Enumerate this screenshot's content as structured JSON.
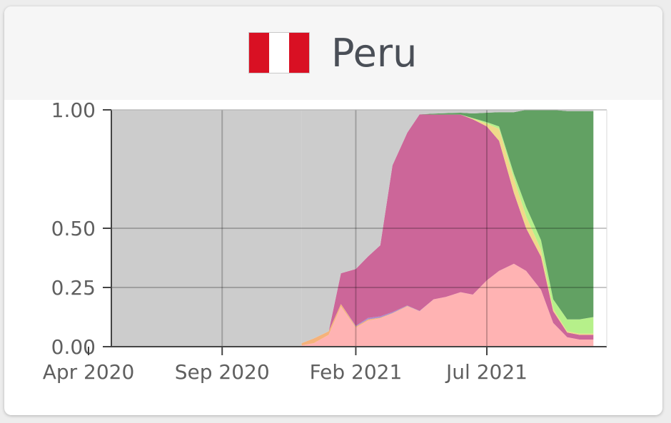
{
  "header": {
    "country": "Peru",
    "flag_icon": "peru-flag-icon",
    "flag_colors": [
      "#d91023",
      "#ffffff",
      "#d91023"
    ]
  },
  "chart_data": {
    "type": "area",
    "stacked": true,
    "normalized": true,
    "title": "",
    "xlabel": "",
    "ylabel": "",
    "x_ticks": [
      "Apr 2020",
      "Sep 2020",
      "Feb 2021",
      "Jul 2021"
    ],
    "y_ticks": [
      "0.00",
      "0.25",
      "0.50",
      "1.00"
    ],
    "y_tick_values": [
      0,
      0.25,
      0.5,
      1.0
    ],
    "ylim": [
      0,
      1
    ],
    "grid": true,
    "legend": "none",
    "x": [
      "2020-12-01",
      "2020-12-15",
      "2021-01-01",
      "2021-01-15",
      "2021-02-01",
      "2021-02-15",
      "2021-03-01",
      "2021-03-15",
      "2021-04-01",
      "2021-04-15",
      "2021-05-01",
      "2021-05-15",
      "2021-06-01",
      "2021-06-15",
      "2021-07-01",
      "2021-07-15",
      "2021-08-01",
      "2021-08-15",
      "2021-09-01",
      "2021-09-15",
      "2021-10-01",
      "2021-10-15",
      "2021-10-31"
    ],
    "series": [
      {
        "color": "#ffb3b3",
        "values": [
          0.005,
          0.015,
          0.05,
          0.17,
          0.08,
          0.11,
          0.12,
          0.14,
          0.17,
          0.15,
          0.2,
          0.21,
          0.23,
          0.22,
          0.28,
          0.32,
          0.35,
          0.32,
          0.24,
          0.1,
          0.04,
          0.03,
          0.03
        ]
      },
      {
        "color": "#f5b27a",
        "values": [
          0.01,
          0.02,
          0.015,
          0.01,
          0.005,
          0.005,
          0.003,
          0.002,
          0.002,
          0.0,
          0.0,
          0.0,
          0.0,
          0.0,
          0.0,
          0.0,
          0.0,
          0.0,
          0.0,
          0.0,
          0.0,
          0.0,
          0.0
        ]
      },
      {
        "color": "#a78bd0",
        "values": [
          0.0,
          0.0,
          0.0,
          0.0,
          0.003,
          0.006,
          0.005,
          0.004,
          0.002,
          0.001,
          0.0,
          0.0,
          0.0,
          0.0,
          0.0,
          0.0,
          0.0,
          0.0,
          0.0,
          0.0,
          0.0,
          0.0,
          0.0
        ]
      },
      {
        "color": "#cc6699",
        "values": [
          0.0,
          0.0,
          0.0,
          0.13,
          0.24,
          0.26,
          0.3,
          0.62,
          0.73,
          0.83,
          0.78,
          0.77,
          0.75,
          0.74,
          0.65,
          0.55,
          0.3,
          0.18,
          0.14,
          0.05,
          0.02,
          0.02,
          0.02
        ]
      },
      {
        "color": "#f0d98a",
        "values": [
          0.0,
          0.0,
          0.0,
          0.0,
          0.0,
          0.0,
          0.0,
          0.0,
          0.0,
          0.0,
          0.0,
          0.0,
          0.0,
          0.003,
          0.012,
          0.05,
          0.06,
          0.05,
          0.03,
          0.01,
          0.005,
          0.005,
          0.005
        ]
      },
      {
        "color": "#b6f08a",
        "values": [
          0.0,
          0.0,
          0.0,
          0.0,
          0.0,
          0.0,
          0.0,
          0.0,
          0.0,
          0.0,
          0.0,
          0.0,
          0.0,
          0.002,
          0.006,
          0.01,
          0.02,
          0.04,
          0.04,
          0.04,
          0.05,
          0.06,
          0.07
        ]
      },
      {
        "color": "#62a163",
        "values": [
          0.0,
          0.0,
          0.0,
          0.0,
          0.0,
          0.0,
          0.0,
          0.0,
          0.0,
          0.0,
          0.004,
          0.006,
          0.008,
          0.02,
          0.04,
          0.06,
          0.26,
          0.41,
          0.55,
          0.8,
          0.88,
          0.88,
          0.87
        ]
      },
      {
        "color": "#cccccc",
        "values": [
          0.985,
          0.965,
          0.935,
          0.69,
          0.672,
          0.619,
          0.572,
          0.234,
          0.096,
          0.019,
          0.016,
          0.014,
          0.012,
          0.015,
          0.012,
          0.01,
          0.01,
          0.0,
          0.0,
          0.0,
          0.005,
          0.005,
          0.005
        ]
      }
    ],
    "background_series_color": "#cccccc"
  }
}
